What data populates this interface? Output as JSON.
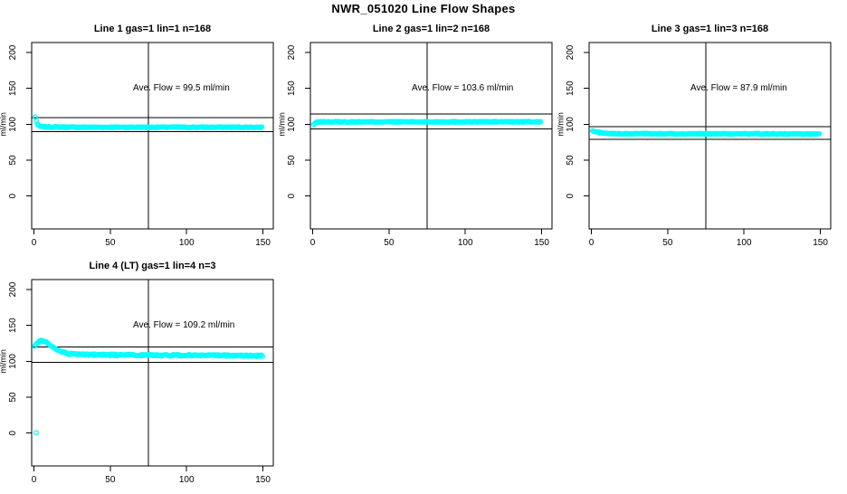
{
  "title": "NWR_051020  Line Flow Shapes",
  "chart_data": [
    {
      "type": "scatter",
      "title": "Line 1 gas=1 lin=1 n=168",
      "gas": 1,
      "lin": 1,
      "n": 168,
      "ave_flow": 99.5,
      "annotation": "Ave. Flow =  99.5  ml/min",
      "ylabel": "ml/min",
      "xlabel": "",
      "xticks": [
        0,
        50,
        100,
        150
      ],
      "yticks": [
        0,
        50,
        100,
        150,
        200
      ],
      "xlim": [
        0,
        157
      ],
      "ylim": [
        -46,
        215
      ],
      "vline_x": 75,
      "hlines": [
        109.5,
        89.6
      ],
      "point_color": "#00FFFF",
      "seed": 7,
      "noise": 0.7,
      "x_start": 0.8,
      "x_end": 150,
      "x_step": 0.75,
      "profile": [
        [
          0.8,
          110
        ],
        [
          1.5,
          105
        ],
        [
          2.5,
          99
        ],
        [
          4,
          97
        ],
        [
          8,
          96.2
        ],
        [
          30,
          95.8
        ],
        [
          150,
          95.8
        ]
      ],
      "extra_points": []
    },
    {
      "type": "scatter",
      "title": "Line 2 gas=1 lin=2 n=168",
      "gas": 1,
      "lin": 2,
      "n": 168,
      "ave_flow": 103.6,
      "annotation": "Ave. Flow =  103.6  ml/min",
      "ylabel": "ml/min",
      "xlabel": "",
      "xticks": [
        0,
        50,
        100,
        150
      ],
      "yticks": [
        0,
        50,
        100,
        150,
        200
      ],
      "xlim": [
        0,
        157
      ],
      "ylim": [
        -46,
        215
      ],
      "vline_x": 75,
      "hlines": [
        114.0,
        93.2
      ],
      "point_color": "#00FFFF",
      "seed": 13,
      "noise": 0.7,
      "x_start": 0.8,
      "x_end": 150,
      "x_step": 0.75,
      "profile": [
        [
          0.8,
          99.5
        ],
        [
          2,
          102.5
        ],
        [
          5,
          103.3
        ],
        [
          150,
          103.4
        ]
      ],
      "extra_points": []
    },
    {
      "type": "scatter",
      "title": "Line 3 gas=1 lin=3 n=168",
      "gas": 1,
      "lin": 3,
      "n": 168,
      "ave_flow": 87.9,
      "annotation": "Ave. Flow =  87.9  ml/min",
      "ylabel": "ml/min",
      "xlabel": "",
      "xticks": [
        0,
        50,
        100,
        150
      ],
      "yticks": [
        0,
        50,
        100,
        150,
        200
      ],
      "xlim": [
        0,
        157
      ],
      "ylim": [
        -46,
        215
      ],
      "vline_x": 75,
      "hlines": [
        96.7,
        79.1
      ],
      "point_color": "#00FFFF",
      "seed": 21,
      "noise": 0.7,
      "x_start": 0.8,
      "x_end": 150,
      "x_step": 0.75,
      "profile": [
        [
          0.8,
          90.5
        ],
        [
          3,
          89.5
        ],
        [
          8,
          87.5
        ],
        [
          15,
          86.8
        ],
        [
          150,
          86.5
        ]
      ],
      "extra_points": []
    },
    {
      "type": "scatter",
      "title": "Line 4 (LT) gas=1 lin=4 n=3",
      "gas": 1,
      "lin": 4,
      "n": 3,
      "ave_flow": 109.2,
      "annotation": "Ave. Flow =  109.2  ml/min",
      "ylabel": "ml/min",
      "xlabel": "",
      "xticks": [
        0,
        50,
        100,
        150
      ],
      "yticks": [
        0,
        50,
        100,
        150,
        200
      ],
      "xlim": [
        0,
        157
      ],
      "ylim": [
        -46,
        215
      ],
      "vline_x": 75,
      "hlines": [
        120.1,
        98.3
      ],
      "point_color": "#00FFFF",
      "seed": 33,
      "noise": 1.1,
      "x_start": 0.5,
      "x_end": 150,
      "x_step": 0.75,
      "profile": [
        [
          0.5,
          120
        ],
        [
          1.5,
          123.5
        ],
        [
          3,
          127
        ],
        [
          5,
          128.5
        ],
        [
          7,
          127.5
        ],
        [
          10,
          123.5
        ],
        [
          14,
          117.5
        ],
        [
          18,
          113.5
        ],
        [
          22,
          111
        ],
        [
          27,
          109.8
        ],
        [
          35,
          109.2
        ],
        [
          60,
          108.8
        ],
        [
          100,
          108.4
        ],
        [
          150,
          107.6
        ]
      ],
      "extra_points": [
        [
          1.5,
          0.5
        ]
      ]
    }
  ]
}
